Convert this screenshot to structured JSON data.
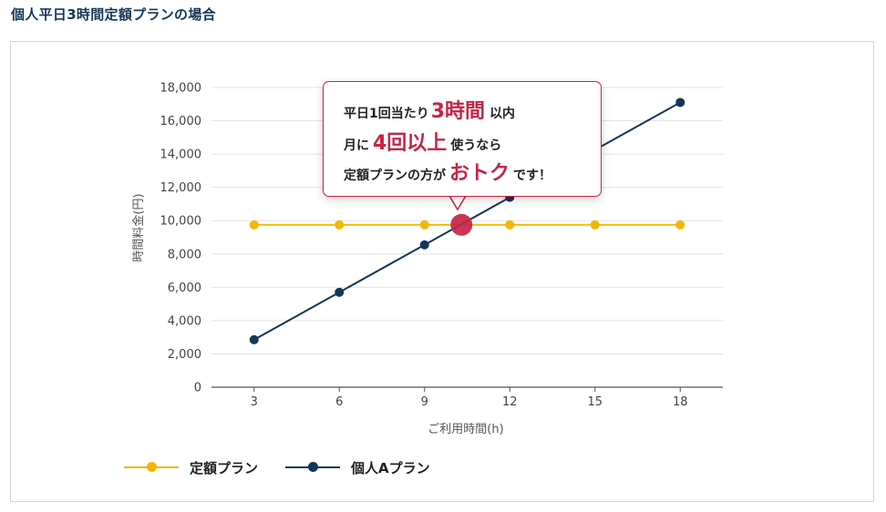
{
  "heading": "個人平日3時間定額プランの場合",
  "callout": {
    "line1_pre": "平日1回当たり",
    "line1_big": "3時間",
    "line1_post": "以内",
    "line2_pre": "月に",
    "line2_big": "4回以上",
    "line2_post": "使うなら",
    "line3_pre": "定額プランの方が",
    "line3_big": "おトク",
    "line3_post": "です！"
  },
  "colors": {
    "teigaku": "#f2b705",
    "kojin": "#14365a",
    "accent": "#c52545",
    "heading": "#163657"
  },
  "chart_data": {
    "type": "line",
    "xlabel": "ご利用時間(h)",
    "ylabel": "時間料金(円)",
    "categories": [
      "3",
      "6",
      "9",
      "12",
      "15",
      "18"
    ],
    "x": [
      3,
      6,
      9,
      12,
      15,
      18
    ],
    "ylim": [
      0,
      18000
    ],
    "yticks": [
      "0",
      "2,000",
      "4,000",
      "6,000",
      "8,000",
      "10,000",
      "12,000",
      "14,000",
      "16,000",
      "18,000"
    ],
    "ytick_values": [
      0,
      2000,
      4000,
      6000,
      8000,
      10000,
      12000,
      14000,
      16000,
      18000
    ],
    "grid": true,
    "legend_position": "bottom-left",
    "series": [
      {
        "name": "定額プラン",
        "color": "#f2b705",
        "values": [
          9750,
          9750,
          9750,
          9750,
          9750,
          9750
        ]
      },
      {
        "name": "個人Aプラン",
        "color": "#14365a",
        "values": [
          2850,
          5700,
          8550,
          11400,
          14250,
          17100
        ]
      }
    ],
    "annotation": {
      "x": 10.3,
      "y": 9750,
      "color": "#c52545"
    }
  }
}
